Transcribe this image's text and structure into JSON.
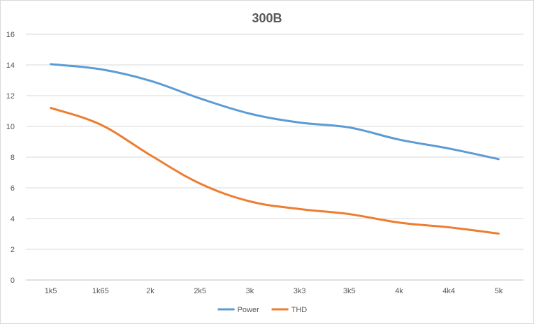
{
  "chart_data": {
    "type": "line",
    "title": "300B",
    "xlabel": "",
    "ylabel": "",
    "categories": [
      "1k5",
      "1k65",
      "2k",
      "2k5",
      "3k",
      "3k3",
      "3k5",
      "4k",
      "4k4",
      "5k"
    ],
    "ylim": [
      0,
      16
    ],
    "yticks": [
      0,
      2,
      4,
      6,
      8,
      10,
      12,
      14,
      16
    ],
    "grid": true,
    "legend": "bottom",
    "series": [
      {
        "name": "Power",
        "color": "#5b9bd5",
        "values": [
          14.05,
          13.72,
          12.97,
          11.82,
          10.83,
          10.25,
          9.93,
          9.14,
          8.56,
          7.87
        ]
      },
      {
        "name": "THD",
        "color": "#ed7d31",
        "values": [
          11.2,
          10.12,
          8.13,
          6.28,
          5.12,
          4.62,
          4.29,
          3.74,
          3.43,
          3.02
        ]
      }
    ]
  }
}
